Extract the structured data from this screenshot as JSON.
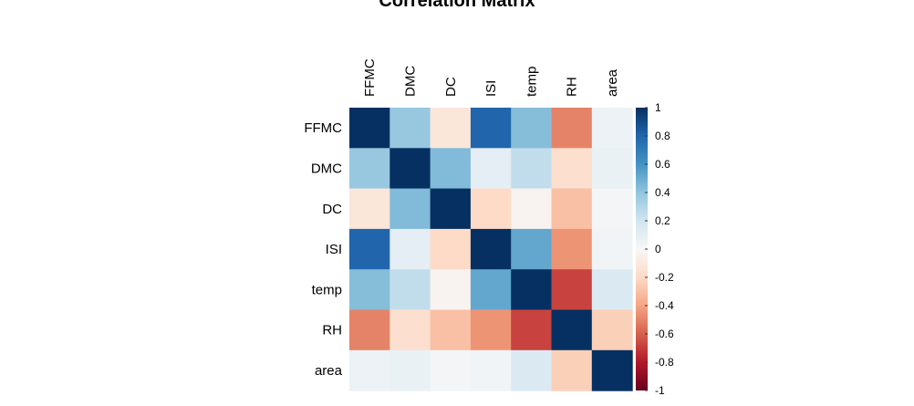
{
  "chart_data": {
    "type": "heatmap",
    "title": "Correlation Matrix",
    "variables": [
      "FFMC",
      "DMC",
      "DC",
      "ISI",
      "temp",
      "RH",
      "area"
    ],
    "matrix": [
      [
        1.0,
        0.38,
        -0.12,
        0.8,
        0.43,
        -0.5,
        0.06
      ],
      [
        0.38,
        1.0,
        0.44,
        0.1,
        0.25,
        -0.17,
        0.07
      ],
      [
        -0.12,
        0.44,
        1.0,
        -0.2,
        -0.03,
        -0.3,
        0.02
      ],
      [
        0.8,
        0.1,
        -0.2,
        1.0,
        0.52,
        -0.45,
        0.03
      ],
      [
        0.43,
        0.25,
        -0.03,
        0.52,
        1.0,
        -0.68,
        0.15
      ],
      [
        -0.5,
        -0.17,
        -0.3,
        -0.45,
        -0.68,
        1.0,
        -0.24
      ],
      [
        0.06,
        0.07,
        0.02,
        0.03,
        0.15,
        -0.24,
        1.0
      ]
    ],
    "colorbar": {
      "min": -1,
      "max": 1,
      "ticks": [
        "1",
        "0.8",
        "0.6",
        "0.4",
        "0.2",
        "0",
        "-0.2",
        "-0.4",
        "-0.6",
        "-0.8",
        "-1"
      ]
    },
    "palette": {
      "neg_full": "#67001F",
      "neg_mid": "#D6604D",
      "zero": "#F7F7F7",
      "pos_mid": "#4393C3",
      "pos_full": "#053061"
    }
  }
}
